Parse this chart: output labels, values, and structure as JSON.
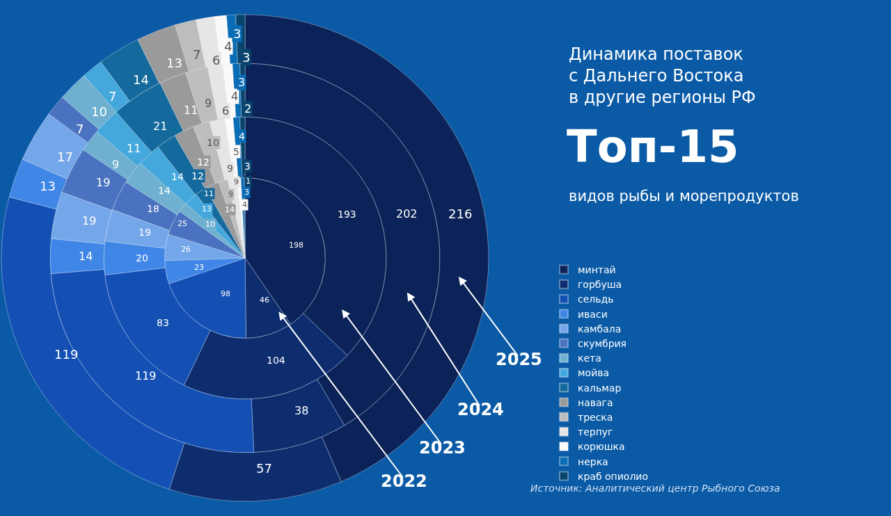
{
  "chart_data": {
    "type": "donut",
    "title": "Динамика поставок\nс Дальнего Востока\nв другие регионы РФ",
    "subtitle": "Топ-15",
    "annotations": [
      "видов рыбы и морепродуктов",
      "Источник: Аналитический центр Рыбного Союза"
    ],
    "categories": [
      "минтай",
      "горбуша",
      "сельдь",
      "иваси",
      "камбала",
      "скумбрия",
      "кета",
      "мойва",
      "кальмар",
      "навага",
      "треска",
      "терпуг",
      "корюшка",
      "нерка",
      "краб опиолио"
    ],
    "colors": [
      "#0b2358",
      "#0d2d6e",
      "#1450b4",
      "#3f86e6",
      "#74a6ea",
      "#4a72c0",
      "#6fb0d0",
      "#45a8dc",
      "#146a9c",
      "#9a9a9a",
      "#bdbdbd",
      "#e6e6e6",
      "#fafafa",
      "#0a6cb4",
      "#08446e"
    ],
    "series": [
      {
        "name": "2022",
        "values": [
          198,
          46,
          98,
          23,
          26,
          25,
          10,
          13,
          11,
          14,
          9,
          9,
          4,
          3,
          1
        ]
      },
      {
        "name": "2023",
        "values": [
          193,
          104,
          83,
          20,
          19,
          18,
          14,
          14,
          12,
          12,
          10,
          9,
          5,
          4,
          3
        ]
      },
      {
        "name": "2024",
        "values": [
          202,
          38,
          119,
          14,
          19,
          19,
          9,
          11,
          21,
          11,
          9,
          6,
          4,
          3,
          2
        ]
      },
      {
        "name": "2025",
        "values": [
          216,
          57,
          119,
          13,
          17,
          7,
          10,
          7,
          14,
          13,
          7,
          6,
          4,
          3,
          3
        ]
      }
    ],
    "data_labels": true,
    "legend": "right"
  }
}
